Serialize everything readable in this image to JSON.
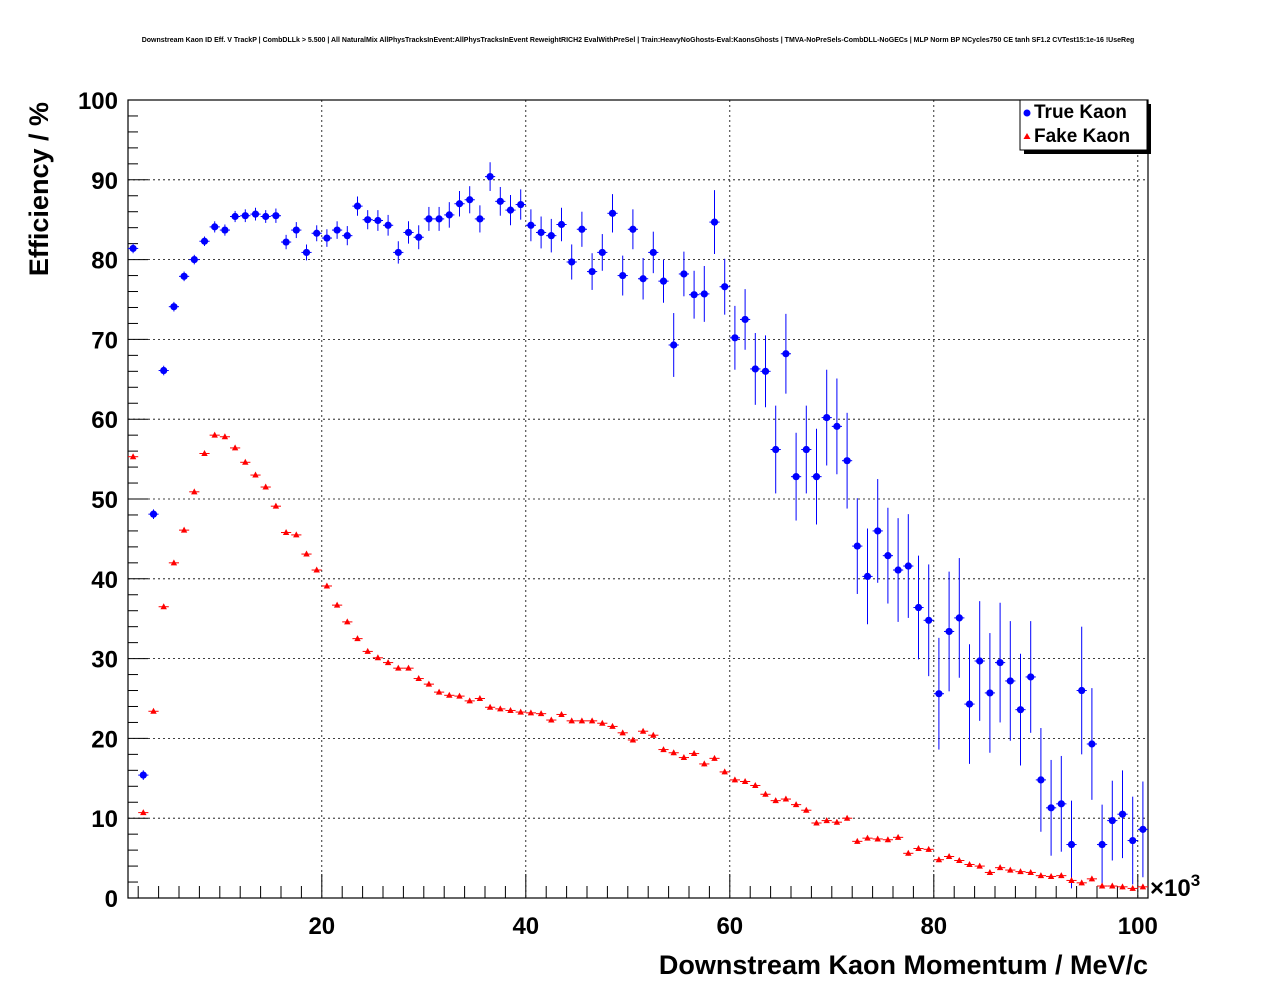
{
  "chart_data": {
    "type": "scatter",
    "title": "Downstream Kaon ID Eff. V TrackP | CombDLLk > 5.500 | All NaturalMix AllPhysTracksInEvent:AllPhysTracksInEvent ReweightRICH2 EvalWithPreSel | Train:HeavyNoGhosts-Eval:KaonsGhosts | TMVA-NoPreSels-CombDLL-NoGECs | MLP Norm BP NCycles750 CE tanh SF1.2 CVTest15:1e-16 !UseReg",
    "xlabel": "Downstream Kaon Momentum / MeV/c",
    "ylabel": "Efficiency / %",
    "x_multiplier_label": "×10",
    "x_multiplier_exp": "3",
    "xlim": [
      1,
      101
    ],
    "ylim": [
      0,
      100
    ],
    "x_ticks": [
      20,
      40,
      60,
      80,
      100
    ],
    "y_ticks": [
      0,
      10,
      20,
      30,
      40,
      50,
      60,
      70,
      80,
      90,
      100
    ],
    "grid": true,
    "legend_position": "top-right",
    "series": [
      {
        "name": "True Kaon",
        "color": "#0000ff",
        "marker": "circle",
        "x": [
          1.5,
          2.5,
          3.5,
          4.5,
          5.5,
          6.5,
          7.5,
          8.5,
          9.5,
          10.5,
          11.5,
          12.5,
          13.5,
          14.5,
          15.5,
          16.5,
          17.5,
          18.5,
          19.5,
          20.5,
          21.5,
          22.5,
          23.5,
          24.5,
          25.5,
          26.5,
          27.5,
          28.5,
          29.5,
          30.5,
          31.5,
          32.5,
          33.5,
          34.5,
          35.5,
          36.5,
          37.5,
          38.5,
          39.5,
          40.5,
          41.5,
          42.5,
          43.5,
          44.5,
          45.5,
          46.5,
          47.5,
          48.5,
          49.5,
          50.5,
          51.5,
          52.5,
          53.5,
          54.5,
          55.5,
          56.5,
          57.5,
          58.5,
          59.5,
          60.5,
          61.5,
          62.5,
          63.5,
          64.5,
          65.5,
          66.5,
          67.5,
          68.5,
          69.5,
          70.5,
          71.5,
          72.5,
          73.5,
          74.5,
          75.5,
          76.5,
          77.5,
          78.5,
          79.5,
          80.5,
          81.5,
          82.5,
          83.5,
          84.5,
          85.5,
          86.5,
          87.5,
          88.5,
          89.5,
          90.5,
          91.5,
          92.5,
          93.5,
          94.5,
          95.5,
          96.5,
          97.5,
          98.5,
          99.5,
          100.5
        ],
        "y": [
          81.4,
          15.4,
          48.1,
          66.1,
          74.1,
          77.9,
          80.0,
          82.3,
          84.1,
          83.7,
          85.4,
          85.5,
          85.7,
          85.4,
          85.5,
          82.2,
          83.7,
          80.9,
          83.3,
          82.7,
          83.7,
          83.0,
          86.7,
          85.0,
          84.9,
          84.3,
          80.9,
          83.4,
          82.8,
          85.1,
          85.1,
          85.6,
          87.0,
          87.5,
          85.1,
          90.4,
          87.3,
          86.2,
          86.9,
          84.3,
          83.4,
          83.0,
          84.4,
          79.7,
          83.8,
          78.5,
          80.9,
          85.8,
          78.0,
          83.8,
          77.6,
          80.9,
          77.3,
          69.3,
          78.2,
          75.6,
          75.7,
          84.7,
          76.6,
          70.2,
          72.5,
          66.3,
          66.0,
          56.2,
          68.2,
          52.8,
          56.2,
          52.8,
          60.2,
          59.1,
          54.8,
          44.1,
          40.3,
          46.0,
          42.9,
          41.1,
          41.6,
          36.4,
          34.8,
          25.6,
          33.4,
          35.1,
          24.3,
          29.7,
          25.7,
          29.5,
          27.2,
          23.6,
          27.7,
          14.8,
          11.3,
          11.8,
          6.7,
          26.0,
          19.3,
          6.7,
          9.7,
          10.5,
          7.2,
          8.6
        ],
        "err": [
          0.6,
          0.6,
          0.6,
          0.6,
          0.6,
          0.6,
          0.6,
          0.6,
          0.7,
          0.7,
          0.7,
          0.8,
          0.8,
          0.8,
          0.9,
          0.9,
          1.0,
          1.0,
          1.0,
          1.1,
          1.1,
          1.2,
          1.2,
          1.2,
          1.3,
          1.3,
          1.4,
          1.4,
          1.5,
          1.5,
          1.5,
          1.6,
          1.6,
          1.7,
          1.7,
          1.8,
          1.8,
          1.9,
          1.9,
          2.0,
          2.0,
          2.1,
          2.1,
          2.2,
          2.2,
          2.3,
          2.3,
          2.4,
          2.5,
          2.5,
          2.6,
          2.6,
          2.7,
          4.0,
          2.8,
          3.0,
          3.5,
          4.0,
          3.5,
          4.0,
          3.8,
          4.5,
          4.5,
          5.5,
          5.0,
          5.5,
          5.5,
          6.0,
          6.0,
          6.0,
          6.0,
          6.0,
          6.0,
          6.5,
          6.0,
          6.5,
          6.5,
          6.5,
          7.0,
          7.0,
          7.5,
          7.5,
          7.5,
          7.5,
          7.5,
          7.5,
          7.5,
          7.0,
          7.0,
          6.5,
          6.0,
          6.0,
          5.5,
          8.0,
          7.0,
          5.0,
          5.0,
          5.5,
          5.5,
          6.0
        ]
      },
      {
        "name": "Fake Kaon",
        "color": "#ff0000",
        "marker": "triangle",
        "x": [
          1.5,
          2.5,
          3.5,
          4.5,
          5.5,
          6.5,
          7.5,
          8.5,
          9.5,
          10.5,
          11.5,
          12.5,
          13.5,
          14.5,
          15.5,
          16.5,
          17.5,
          18.5,
          19.5,
          20.5,
          21.5,
          22.5,
          23.5,
          24.5,
          25.5,
          26.5,
          27.5,
          28.5,
          29.5,
          30.5,
          31.5,
          32.5,
          33.5,
          34.5,
          35.5,
          36.5,
          37.5,
          38.5,
          39.5,
          40.5,
          41.5,
          42.5,
          43.5,
          44.5,
          45.5,
          46.5,
          47.5,
          48.5,
          49.5,
          50.5,
          51.5,
          52.5,
          53.5,
          54.5,
          55.5,
          56.5,
          57.5,
          58.5,
          59.5,
          60.5,
          61.5,
          62.5,
          63.5,
          64.5,
          65.5,
          66.5,
          67.5,
          68.5,
          69.5,
          70.5,
          71.5,
          72.5,
          73.5,
          74.5,
          75.5,
          76.5,
          77.5,
          78.5,
          79.5,
          80.5,
          81.5,
          82.5,
          83.5,
          84.5,
          85.5,
          86.5,
          87.5,
          88.5,
          89.5,
          90.5,
          91.5,
          92.5,
          93.5,
          94.5,
          95.5,
          96.5,
          97.5,
          98.5,
          99.5,
          100.5
        ],
        "y": [
          55.3,
          10.7,
          23.4,
          36.5,
          42.0,
          46.1,
          50.9,
          55.7,
          58.0,
          57.8,
          56.4,
          54.6,
          53.0,
          51.5,
          49.1,
          45.8,
          45.5,
          43.1,
          41.1,
          39.1,
          36.7,
          34.6,
          32.5,
          30.9,
          30.1,
          29.5,
          28.8,
          28.8,
          27.5,
          26.8,
          25.8,
          25.4,
          25.3,
          24.7,
          25.0,
          23.9,
          23.7,
          23.5,
          23.3,
          23.2,
          23.1,
          22.3,
          23.0,
          22.2,
          22.2,
          22.2,
          21.9,
          21.5,
          20.7,
          19.8,
          20.9,
          20.4,
          18.6,
          18.2,
          17.6,
          18.1,
          16.8,
          17.5,
          15.8,
          14.8,
          14.6,
          14.1,
          13.0,
          12.2,
          12.4,
          11.7,
          11.0,
          9.4,
          9.7,
          9.5,
          10.0,
          7.1,
          7.5,
          7.4,
          7.3,
          7.6,
          5.6,
          6.2,
          6.1,
          4.8,
          5.2,
          4.7,
          4.2,
          4.0,
          3.2,
          3.8,
          3.5,
          3.3,
          3.2,
          2.8,
          2.7,
          2.8,
          2.2,
          1.9,
          2.4,
          1.5,
          1.5,
          1.4,
          1.2,
          1.4
        ],
        "err": [
          0.3,
          0.2,
          0.2,
          0.2,
          0.2,
          0.2,
          0.2,
          0.2,
          0.2,
          0.2,
          0.2,
          0.2,
          0.2,
          0.2,
          0.2,
          0.2,
          0.2,
          0.2,
          0.2,
          0.2,
          0.2,
          0.2,
          0.2,
          0.2,
          0.2,
          0.2,
          0.2,
          0.2,
          0.2,
          0.2,
          0.2,
          0.2,
          0.2,
          0.2,
          0.2,
          0.2,
          0.2,
          0.2,
          0.2,
          0.2,
          0.2,
          0.2,
          0.2,
          0.2,
          0.2,
          0.2,
          0.2,
          0.2,
          0.2,
          0.2,
          0.2,
          0.3,
          0.3,
          0.3,
          0.3,
          0.3,
          0.3,
          0.3,
          0.3,
          0.3,
          0.3,
          0.3,
          0.3,
          0.3,
          0.3,
          0.3,
          0.3,
          0.3,
          0.3,
          0.3,
          0.3,
          0.3,
          0.3,
          0.3,
          0.3,
          0.3,
          0.3,
          0.3,
          0.3,
          0.3,
          0.3,
          0.3,
          0.3,
          0.3,
          0.3,
          0.3,
          0.3,
          0.3,
          0.3,
          0.3,
          0.3,
          0.3,
          0.3,
          0.3,
          0.3,
          0.3,
          0.3,
          0.3,
          0.3,
          0.3
        ]
      }
    ]
  }
}
